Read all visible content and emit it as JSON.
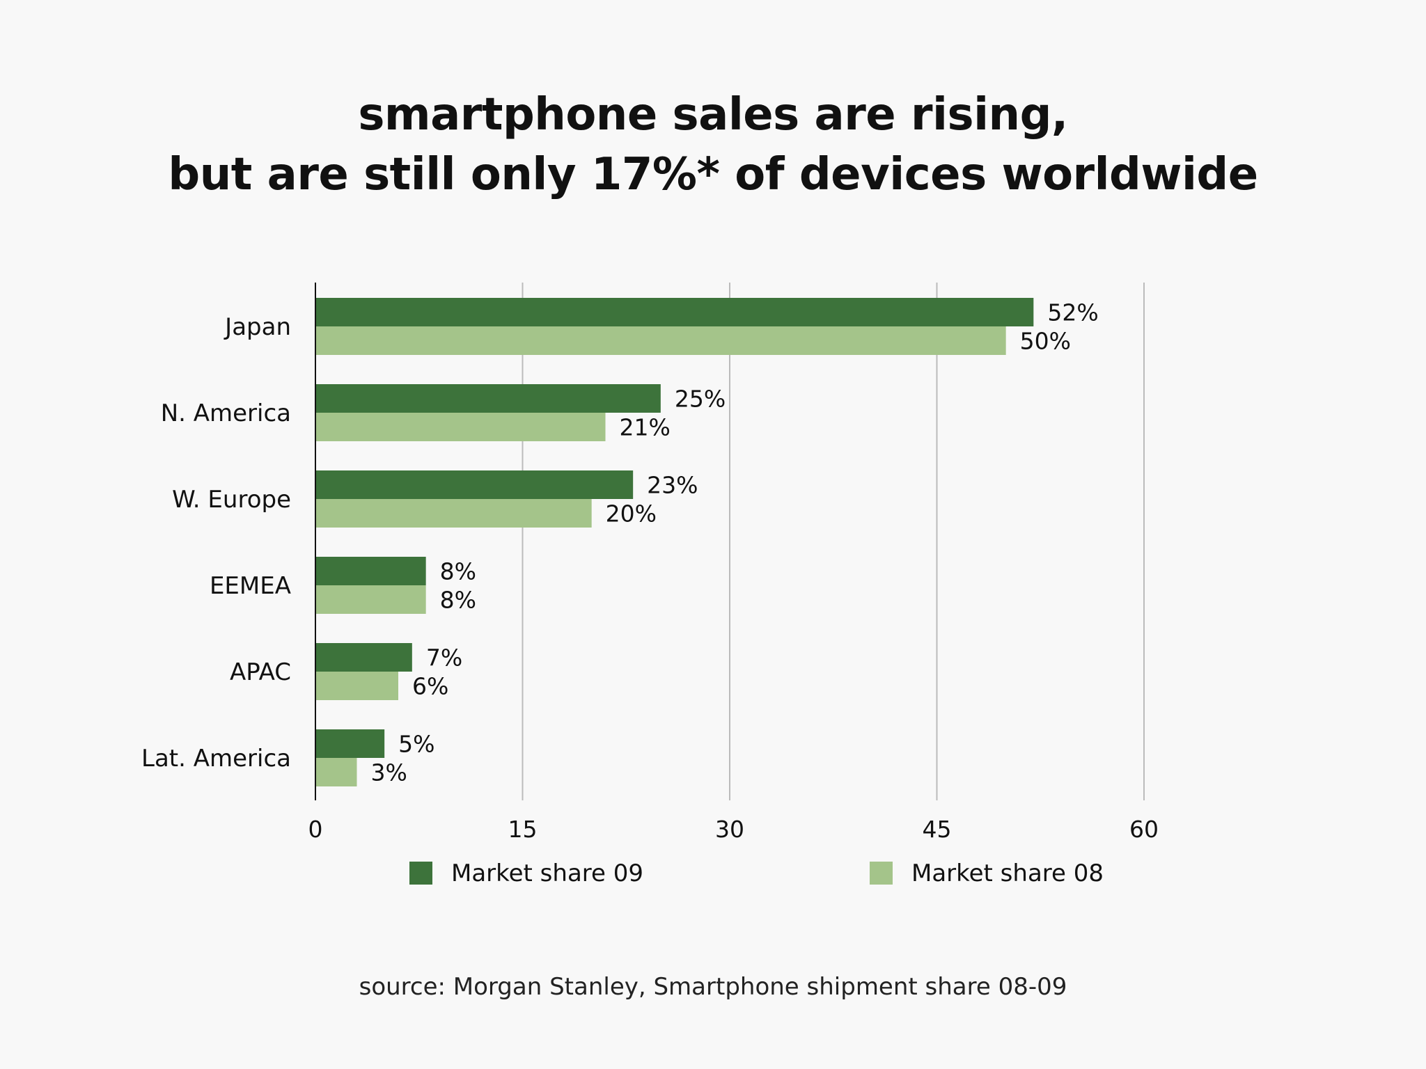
{
  "title": {
    "line1": "smartphone sales are rising,",
    "line2": "but are still only 17%* of devices worldwide"
  },
  "source": "source: Morgan Stanley, Smartphone shipment share 08-09",
  "colors": {
    "series_09": "#3d733b",
    "series_08": "#a4c48a",
    "grid": "#bbbbbb",
    "axis": "#111111",
    "background": "#f8f8f8"
  },
  "chart_data": {
    "type": "bar",
    "orientation": "horizontal",
    "categories": [
      "Japan",
      "N. America",
      "W. Europe",
      "EEMEA",
      "APAC",
      "Lat. America"
    ],
    "series": [
      {
        "name": "Market share 09",
        "values": [
          52,
          25,
          23,
          8,
          7,
          5
        ],
        "labels": [
          "52%",
          "25%",
          "23%",
          "8%",
          "7%",
          "5%"
        ]
      },
      {
        "name": "Market share 08",
        "values": [
          50,
          21,
          20,
          8,
          6,
          3
        ],
        "labels": [
          "50%",
          "21%",
          "20%",
          "8%",
          "6%",
          "3%"
        ]
      }
    ],
    "xlim": [
      0,
      60
    ],
    "xticks": [
      0,
      15,
      30,
      45,
      60
    ],
    "xtick_labels": [
      "0",
      "15",
      "30",
      "45",
      "60"
    ],
    "grid": true,
    "legend_position": "bottom"
  }
}
